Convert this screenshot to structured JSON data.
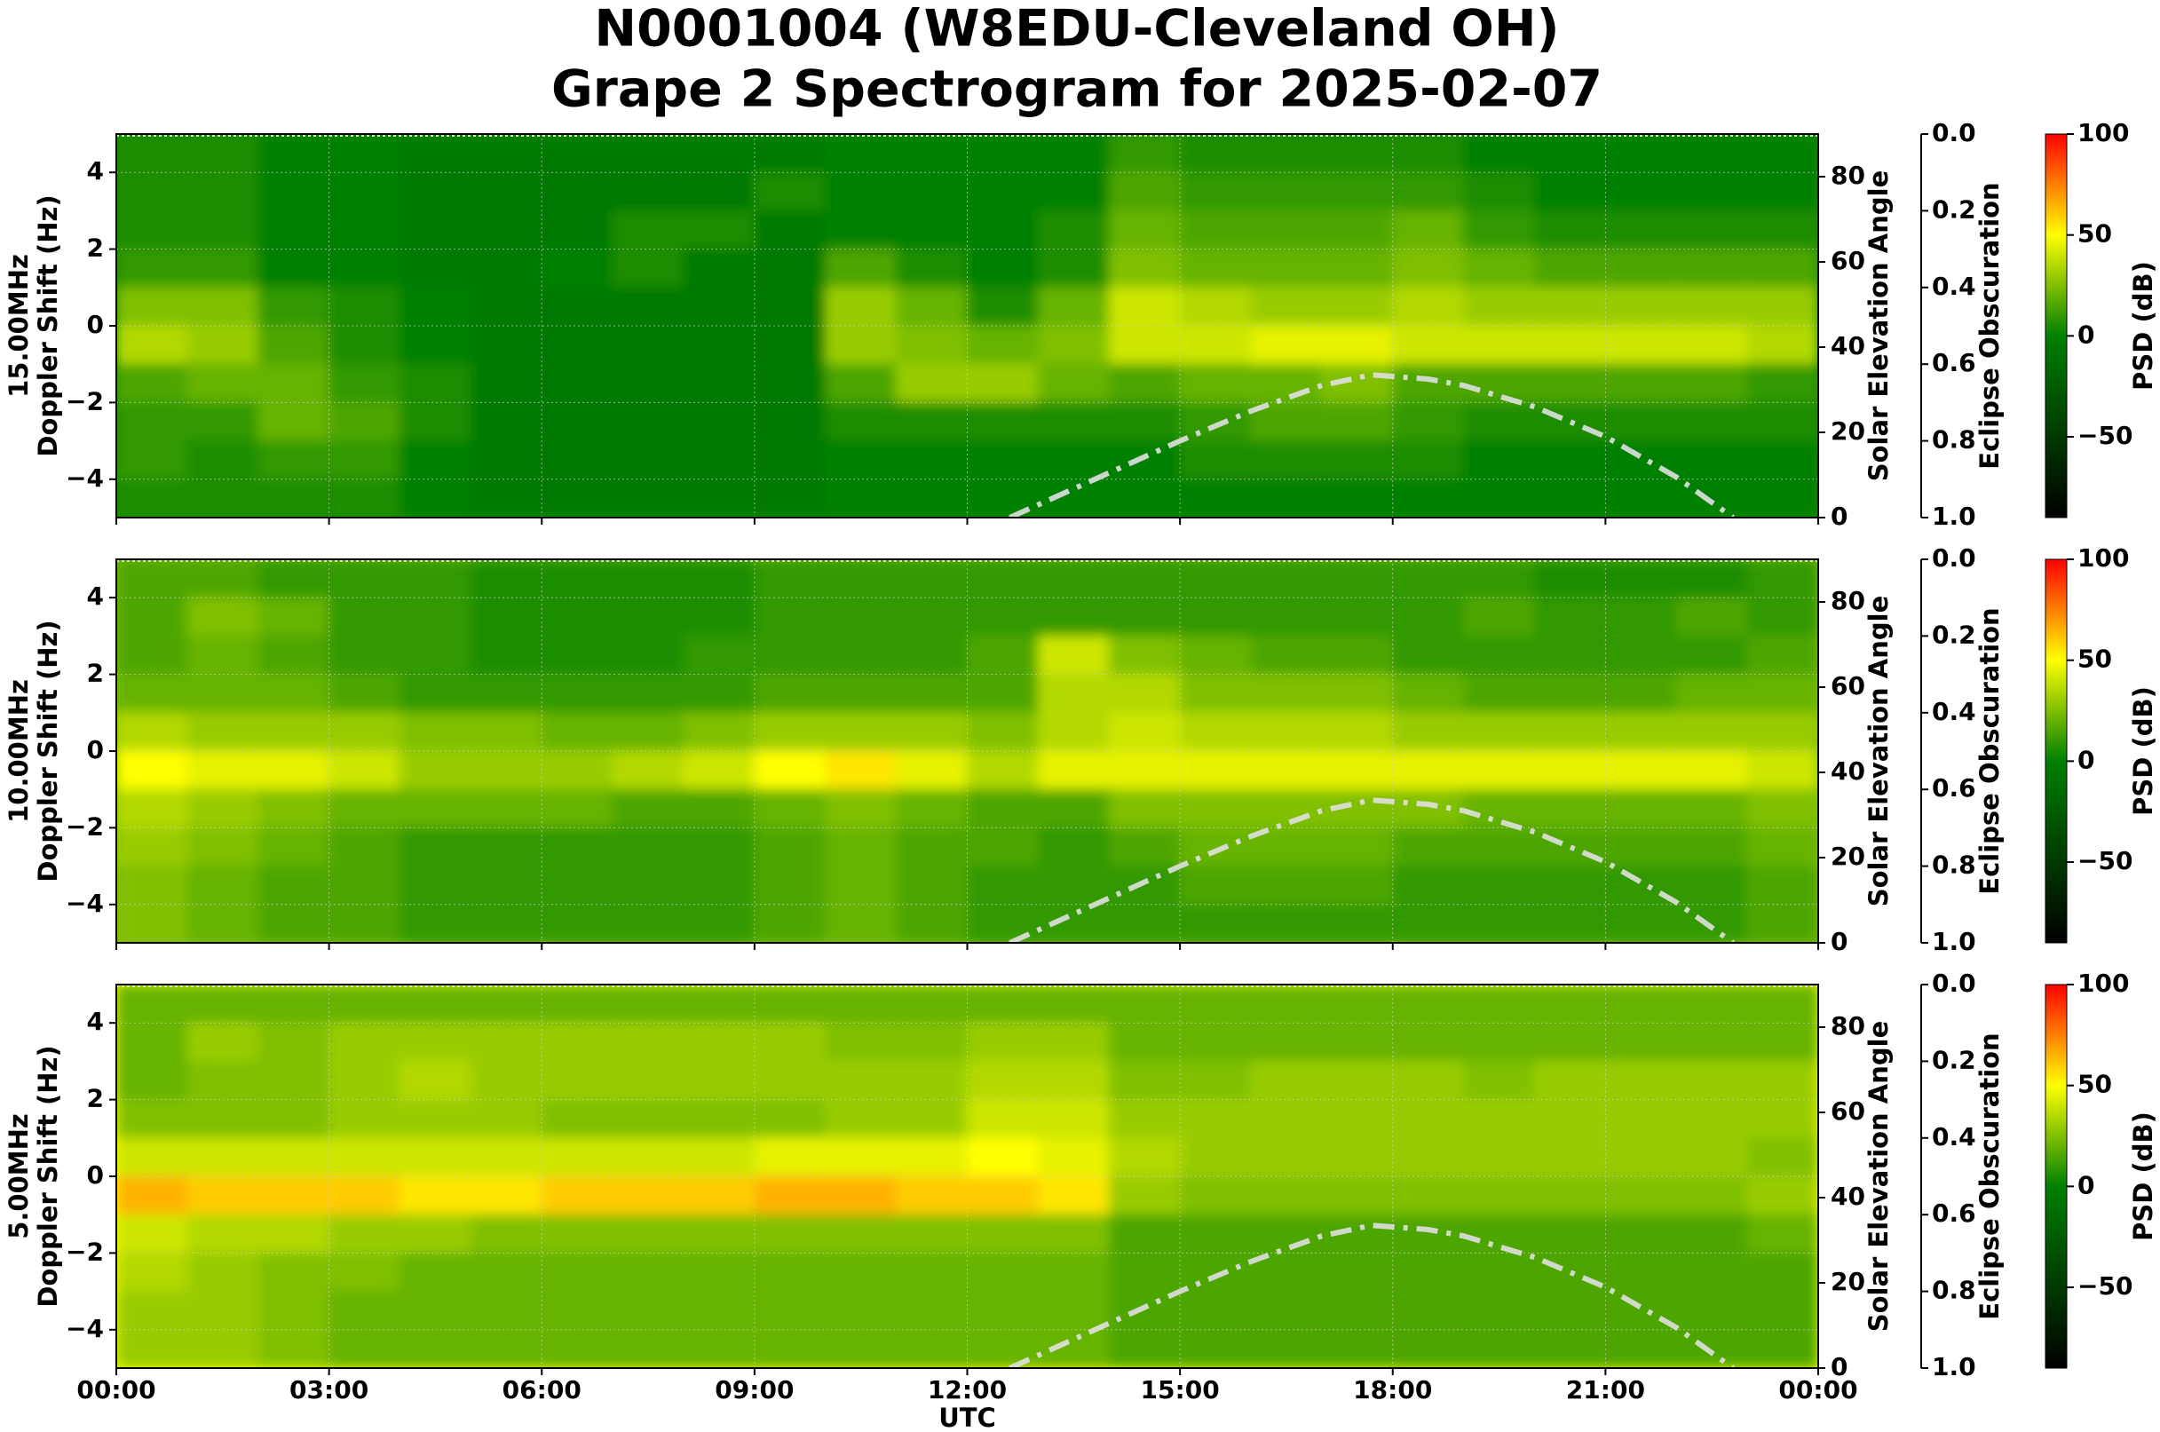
{
  "chart_data": [
    {
      "type": "spectrogram",
      "title": "N0001004 (W8EDU-Cleveland OH)",
      "subtitle": "Grape 2 Spectrogram for 2025-02-07",
      "frequency": "15.00MHz",
      "ylabel": "Doppler Shift (Hz)",
      "xlim": [
        0,
        24
      ],
      "ylim": [
        -5,
        5
      ],
      "yticks": [
        {
          "value": -4,
          "label": "−4"
        },
        {
          "value": -2,
          "label": "−2"
        },
        0,
        2,
        4
      ],
      "y2label": "Solar Elevation Angle",
      "y2lim": [
        0,
        90
      ],
      "y2ticks": [
        0,
        20,
        40,
        60,
        80
      ],
      "y3label": "Eclipse Obscuration",
      "y3lim": [
        1,
        0
      ],
      "y3ticks": [
        {
          "value": 0,
          "label": "0.0"
        },
        {
          "value": 0.2,
          "label": "0.2"
        },
        {
          "value": 0.4,
          "label": "0.4"
        },
        {
          "value": 0.6,
          "label": "0.6"
        },
        {
          "value": 0.8,
          "label": "0.8"
        },
        {
          "value": 1,
          "label": "1.0"
        }
      ],
      "clabel": "PSD (dB)",
      "clim": [
        -90,
        100
      ],
      "cticks": [
        {
          "value": -50,
          "label": "−50"
        },
        0,
        50,
        100
      ],
      "colorscale": [
        [
          -90,
          "#000000"
        ],
        [
          0,
          "#008000"
        ],
        [
          50,
          "#ffff00"
        ],
        [
          100,
          "#ff0000"
        ]
      ],
      "grid": true,
      "xbins": [
        0,
        1,
        2,
        3,
        4,
        5,
        6,
        7,
        8,
        9,
        10,
        11,
        12,
        13,
        14,
        15,
        16,
        17,
        18,
        19,
        20,
        21,
        22,
        23,
        24
      ],
      "ybins": [
        5,
        4,
        3,
        2,
        1,
        0,
        -1,
        -2,
        -3,
        -4,
        -5
      ],
      "z": [
        [
          5,
          5,
          0,
          0,
          -5,
          -5,
          -5,
          -5,
          -5,
          -5,
          0,
          0,
          0,
          0,
          10,
          5,
          5,
          5,
          5,
          0,
          0,
          0,
          0,
          0
        ],
        [
          5,
          5,
          0,
          0,
          -5,
          -5,
          -5,
          -5,
          -5,
          5,
          0,
          0,
          0,
          0,
          15,
          10,
          10,
          10,
          10,
          5,
          0,
          0,
          0,
          0
        ],
        [
          5,
          5,
          0,
          0,
          -5,
          -5,
          -5,
          5,
          5,
          -5,
          0,
          0,
          0,
          5,
          20,
          15,
          15,
          15,
          20,
          10,
          5,
          5,
          5,
          5
        ],
        [
          10,
          10,
          0,
          0,
          -5,
          -5,
          0,
          5,
          -5,
          -5,
          15,
          5,
          0,
          5,
          25,
          20,
          20,
          20,
          25,
          20,
          15,
          15,
          15,
          15
        ],
        [
          25,
          25,
          10,
          5,
          0,
          -5,
          -5,
          -5,
          -5,
          -5,
          30,
          20,
          5,
          20,
          40,
          35,
          30,
          30,
          35,
          30,
          30,
          30,
          30,
          30
        ],
        [
          35,
          30,
          15,
          5,
          0,
          -5,
          -5,
          -5,
          -5,
          -5,
          30,
          25,
          20,
          25,
          40,
          40,
          45,
          45,
          40,
          40,
          40,
          40,
          40,
          35
        ],
        [
          15,
          20,
          20,
          10,
          5,
          -5,
          -5,
          -5,
          -5,
          -5,
          15,
          30,
          30,
          20,
          15,
          20,
          20,
          25,
          15,
          15,
          15,
          15,
          15,
          10
        ],
        [
          10,
          10,
          20,
          15,
          5,
          -5,
          -5,
          -5,
          -5,
          -5,
          5,
          5,
          5,
          5,
          5,
          10,
          15,
          15,
          10,
          5,
          5,
          5,
          5,
          5
        ],
        [
          10,
          5,
          10,
          10,
          0,
          -5,
          -5,
          -5,
          -5,
          -5,
          0,
          0,
          0,
          0,
          0,
          5,
          5,
          5,
          5,
          0,
          0,
          0,
          0,
          0
        ],
        [
          5,
          5,
          5,
          5,
          0,
          -5,
          -5,
          -5,
          -5,
          -5,
          0,
          0,
          0,
          0,
          0,
          0,
          0,
          0,
          0,
          0,
          0,
          0,
          0,
          0
        ]
      ],
      "x": [
        12.6,
        13,
        14,
        15,
        16,
        17,
        17.7,
        18.5,
        19,
        20,
        21,
        22,
        22.8
      ],
      "series": [
        {
          "color": "#e0e0e0",
          "axis": "y2",
          "values": [
            0,
            3,
            10.5,
            18,
            25,
            31,
            33.5,
            32.5,
            31,
            26,
            19,
            9.5,
            0
          ]
        }
      ]
    },
    {
      "type": "spectrogram",
      "frequency": "10.00MHz",
      "ylabel": "Doppler Shift (Hz)",
      "xlim": [
        0,
        24
      ],
      "ylim": [
        -5,
        5
      ],
      "yticks": [
        {
          "value": -4,
          "label": "−4"
        },
        {
          "value": -2,
          "label": "−2"
        },
        0,
        2,
        4
      ],
      "y2label": "Solar Elevation Angle",
      "y2lim": [
        0,
        90
      ],
      "y2ticks": [
        0,
        20,
        40,
        60,
        80
      ],
      "y3label": "Eclipse Obscuration",
      "y3lim": [
        1,
        0
      ],
      "y3ticks": [
        {
          "value": 0,
          "label": "0.0"
        },
        {
          "value": 0.2,
          "label": "0.2"
        },
        {
          "value": 0.4,
          "label": "0.4"
        },
        {
          "value": 0.6,
          "label": "0.6"
        },
        {
          "value": 0.8,
          "label": "0.8"
        },
        {
          "value": 1,
          "label": "1.0"
        }
      ],
      "clabel": "PSD (dB)",
      "clim": [
        -90,
        100
      ],
      "cticks": [
        {
          "value": -50,
          "label": "−50"
        },
        0,
        50,
        100
      ],
      "colorscale": [
        [
          -90,
          "#000000"
        ],
        [
          0,
          "#008000"
        ],
        [
          50,
          "#ffff00"
        ],
        [
          100,
          "#ff0000"
        ]
      ],
      "grid": true,
      "xbins": [
        0,
        1,
        2,
        3,
        4,
        5,
        6,
        7,
        8,
        9,
        10,
        11,
        12,
        13,
        14,
        15,
        16,
        17,
        18,
        19,
        20,
        21,
        22,
        23,
        24
      ],
      "ybins": [
        5,
        4,
        3,
        2,
        1,
        0,
        -1,
        -2,
        -3,
        -4,
        -5
      ],
      "z": [
        [
          15,
          15,
          10,
          10,
          10,
          5,
          5,
          5,
          5,
          10,
          10,
          10,
          10,
          10,
          10,
          10,
          10,
          10,
          10,
          10,
          5,
          5,
          5,
          10
        ],
        [
          15,
          25,
          20,
          10,
          10,
          5,
          5,
          5,
          5,
          10,
          10,
          10,
          10,
          10,
          10,
          10,
          10,
          10,
          10,
          15,
          10,
          10,
          15,
          10
        ],
        [
          15,
          20,
          15,
          10,
          10,
          5,
          5,
          5,
          10,
          10,
          10,
          10,
          15,
          40,
          25,
          20,
          15,
          15,
          10,
          10,
          10,
          10,
          10,
          15
        ],
        [
          20,
          20,
          20,
          15,
          10,
          10,
          10,
          10,
          10,
          15,
          15,
          15,
          15,
          35,
          35,
          25,
          25,
          25,
          20,
          15,
          15,
          15,
          20,
          20
        ],
        [
          35,
          30,
          30,
          30,
          25,
          25,
          20,
          20,
          25,
          30,
          30,
          30,
          25,
          35,
          40,
          35,
          35,
          35,
          30,
          30,
          30,
          30,
          30,
          30
        ],
        [
          50,
          45,
          45,
          40,
          30,
          30,
          30,
          35,
          40,
          50,
          55,
          45,
          35,
          45,
          45,
          45,
          45,
          45,
          45,
          45,
          45,
          45,
          45,
          40
        ],
        [
          35,
          30,
          25,
          20,
          20,
          20,
          20,
          15,
          15,
          20,
          25,
          20,
          15,
          15,
          25,
          25,
          25,
          25,
          25,
          20,
          20,
          20,
          20,
          25
        ],
        [
          30,
          25,
          20,
          15,
          10,
          10,
          10,
          10,
          10,
          15,
          20,
          15,
          15,
          10,
          15,
          20,
          20,
          20,
          15,
          15,
          15,
          15,
          15,
          20
        ],
        [
          25,
          20,
          15,
          15,
          10,
          10,
          10,
          10,
          10,
          15,
          20,
          15,
          10,
          10,
          10,
          15,
          15,
          15,
          10,
          10,
          10,
          10,
          10,
          15
        ],
        [
          25,
          20,
          15,
          15,
          10,
          10,
          10,
          10,
          10,
          15,
          20,
          15,
          10,
          10,
          10,
          10,
          10,
          10,
          10,
          10,
          10,
          10,
          10,
          15
        ]
      ],
      "x": [
        12.6,
        13,
        14,
        15,
        16,
        17,
        17.7,
        18.5,
        19,
        20,
        21,
        22,
        22.8
      ],
      "series": [
        {
          "color": "#e0e0e0",
          "axis": "y2",
          "values": [
            0,
            3,
            10.5,
            18,
            25,
            31,
            33.5,
            32.5,
            31,
            26,
            19,
            9.5,
            0
          ]
        }
      ]
    },
    {
      "type": "spectrogram",
      "frequency": "5.00MHz",
      "ylabel": "Doppler Shift (Hz)",
      "xlabel": "UTC",
      "xlim": [
        0,
        24
      ],
      "xticks": [
        {
          "value": 0,
          "label": "00:00"
        },
        {
          "value": 3,
          "label": "03:00"
        },
        {
          "value": 6,
          "label": "06:00"
        },
        {
          "value": 9,
          "label": "09:00"
        },
        {
          "value": 12,
          "label": "12:00"
        },
        {
          "value": 15,
          "label": "15:00"
        },
        {
          "value": 18,
          "label": "18:00"
        },
        {
          "value": 21,
          "label": "21:00"
        },
        {
          "value": 24,
          "label": "00:00"
        }
      ],
      "ylim": [
        -5,
        5
      ],
      "yticks": [
        {
          "value": -4,
          "label": "−4"
        },
        {
          "value": -2,
          "label": "−2"
        },
        0,
        2,
        4
      ],
      "y2label": "Solar Elevation Angle",
      "y2lim": [
        0,
        90
      ],
      "y2ticks": [
        0,
        20,
        40,
        60,
        80
      ],
      "y3label": "Eclipse Obscuration",
      "y3lim": [
        1,
        0
      ],
      "y3ticks": [
        {
          "value": 0,
          "label": "0.0"
        },
        {
          "value": 0.2,
          "label": "0.2"
        },
        {
          "value": 0.4,
          "label": "0.4"
        },
        {
          "value": 0.6,
          "label": "0.6"
        },
        {
          "value": 0.8,
          "label": "0.8"
        },
        {
          "value": 1,
          "label": "1.0"
        }
      ],
      "clabel": "PSD (dB)",
      "clim": [
        -90,
        100
      ],
      "cticks": [
        {
          "value": -50,
          "label": "−50"
        },
        0,
        50,
        100
      ],
      "colorscale": [
        [
          -90,
          "#000000"
        ],
        [
          0,
          "#008000"
        ],
        [
          50,
          "#ffff00"
        ],
        [
          100,
          "#ff0000"
        ]
      ],
      "grid": true,
      "xbins": [
        0,
        1,
        2,
        3,
        4,
        5,
        6,
        7,
        8,
        9,
        10,
        11,
        12,
        13,
        14,
        15,
        16,
        17,
        18,
        19,
        20,
        21,
        22,
        23,
        24
      ],
      "ybins": [
        5,
        4,
        3,
        2,
        1,
        0,
        -1,
        -2,
        -3,
        -4,
        -5
      ],
      "z": [
        [
          20,
          20,
          20,
          20,
          20,
          20,
          20,
          20,
          20,
          20,
          20,
          20,
          20,
          20,
          20,
          20,
          20,
          20,
          20,
          20,
          20,
          20,
          20,
          20
        ],
        [
          20,
          30,
          25,
          30,
          30,
          30,
          30,
          30,
          30,
          30,
          25,
          25,
          30,
          30,
          20,
          20,
          20,
          20,
          20,
          20,
          20,
          20,
          20,
          20
        ],
        [
          20,
          25,
          25,
          30,
          35,
          30,
          30,
          30,
          30,
          30,
          30,
          30,
          35,
          35,
          25,
          25,
          30,
          30,
          30,
          25,
          30,
          30,
          30,
          30
        ],
        [
          25,
          25,
          25,
          30,
          30,
          30,
          25,
          25,
          25,
          25,
          30,
          30,
          40,
          40,
          30,
          30,
          30,
          30,
          30,
          30,
          30,
          30,
          30,
          30
        ],
        [
          40,
          40,
          40,
          40,
          40,
          40,
          40,
          40,
          40,
          45,
          45,
          45,
          50,
          45,
          35,
          30,
          30,
          30,
          30,
          30,
          30,
          30,
          30,
          25
        ],
        [
          65,
          60,
          60,
          60,
          55,
          55,
          60,
          60,
          60,
          65,
          65,
          60,
          60,
          55,
          30,
          25,
          25,
          25,
          25,
          25,
          25,
          25,
          25,
          30
        ],
        [
          40,
          35,
          35,
          30,
          30,
          25,
          25,
          25,
          25,
          25,
          25,
          25,
          25,
          25,
          15,
          15,
          15,
          15,
          15,
          15,
          15,
          15,
          15,
          20
        ],
        [
          35,
          30,
          25,
          25,
          20,
          20,
          20,
          20,
          20,
          20,
          20,
          20,
          20,
          20,
          15,
          15,
          15,
          15,
          15,
          15,
          15,
          15,
          15,
          15
        ],
        [
          30,
          30,
          25,
          20,
          20,
          20,
          20,
          20,
          20,
          20,
          20,
          20,
          20,
          20,
          15,
          15,
          15,
          15,
          15,
          15,
          15,
          15,
          15,
          15
        ],
        [
          30,
          30,
          25,
          20,
          20,
          20,
          20,
          20,
          20,
          20,
          20,
          20,
          20,
          20,
          15,
          15,
          15,
          15,
          15,
          15,
          15,
          15,
          15,
          15
        ]
      ],
      "x": [
        12.6,
        13,
        14,
        15,
        16,
        17,
        17.7,
        18.5,
        19,
        20,
        21,
        22,
        22.8
      ],
      "series": [
        {
          "color": "#e0e0e0",
          "axis": "y2",
          "values": [
            0,
            3,
            10.5,
            18,
            25,
            31,
            33.5,
            32.5,
            31,
            26,
            19,
            9.5,
            0
          ]
        }
      ]
    }
  ]
}
